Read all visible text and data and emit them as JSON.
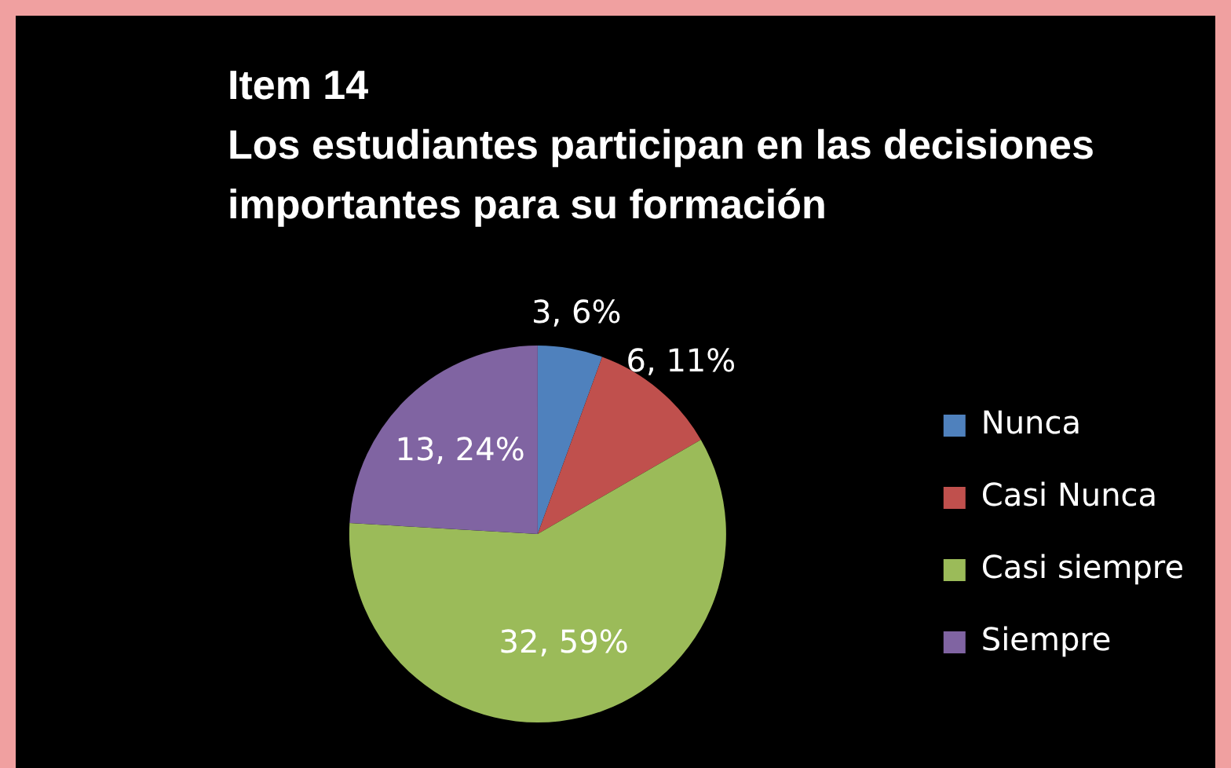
{
  "chart_data": {
    "type": "pie",
    "title": "Item 14\n Los estudiantes participan en las decisiones importantes para su formación",
    "categories": [
      "Nunca",
      "Casi Nunca",
      "Casi siempre",
      "Siempre"
    ],
    "values": [
      3,
      6,
      32,
      13
    ],
    "colors": [
      "#4f81bd",
      "#c0504d",
      "#9bbb59",
      "#8064a2"
    ],
    "value_labels": [
      "3, 6%",
      "6, 11%",
      "32, 59%",
      "13, 24%"
    ],
    "legend": "right"
  }
}
